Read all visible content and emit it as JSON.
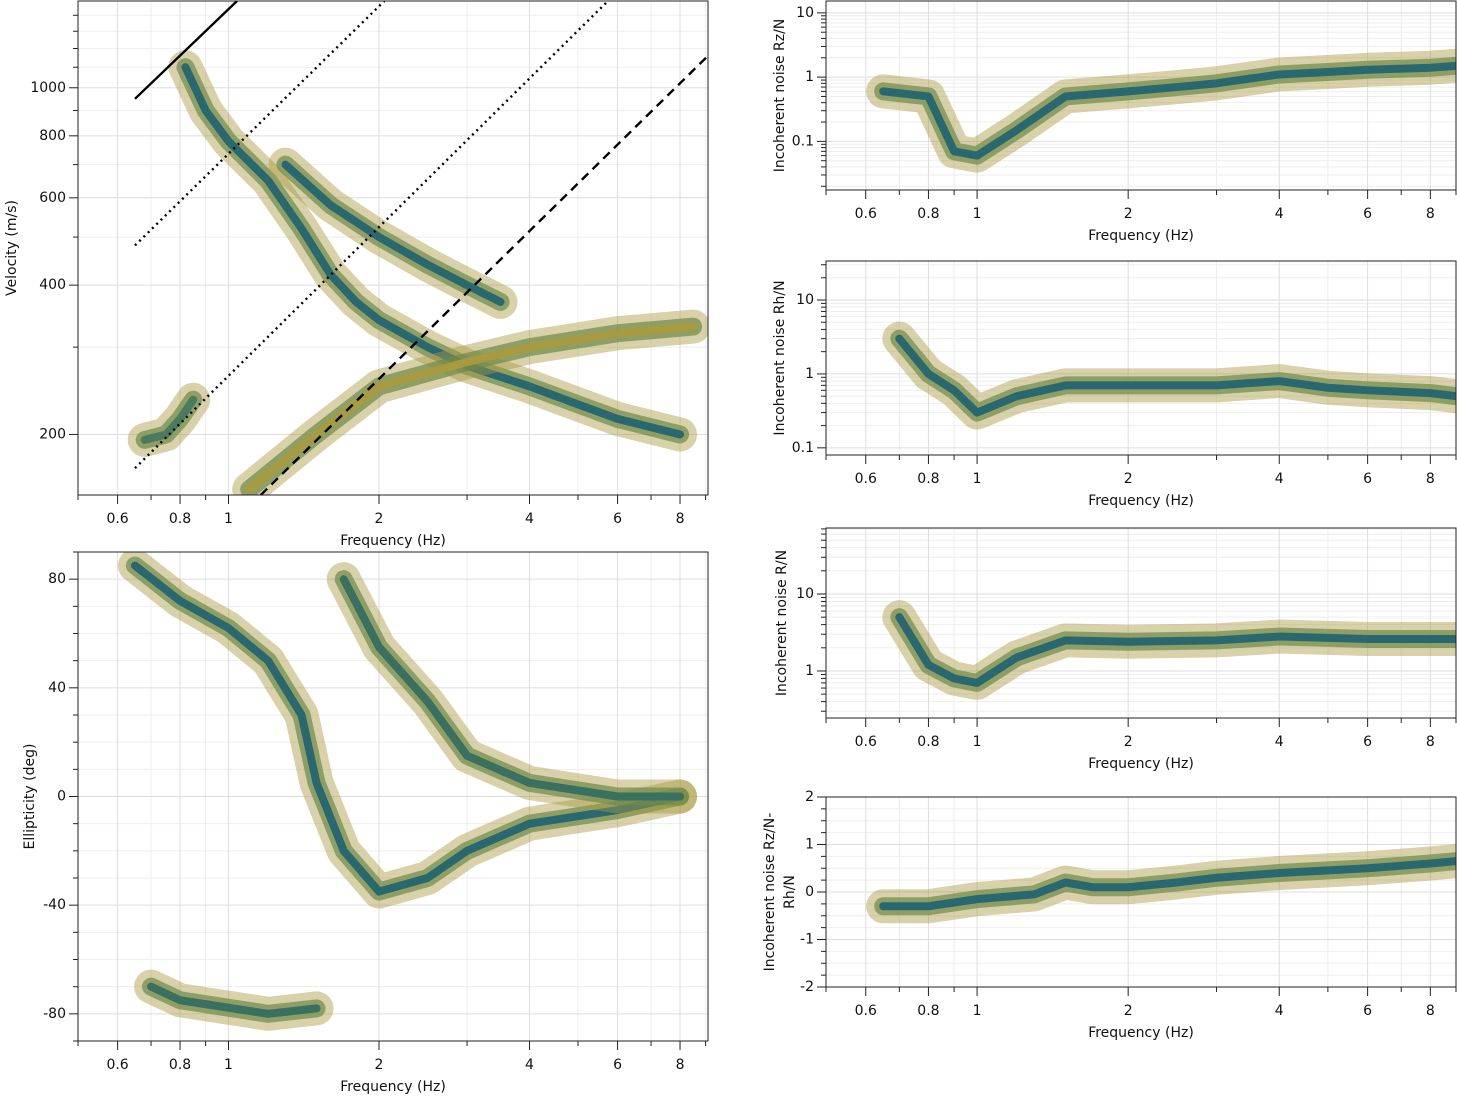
{
  "chart_data": [
    {
      "type": "density",
      "xlabel": "Frequency (Hz)",
      "ylabel": [
        "Velocity (m/s)"
      ],
      "xlog": true,
      "ylog": true,
      "xlim": [
        0.5,
        9.1
      ],
      "ylim": [
        151,
        1496
      ],
      "xticks": [
        0.6,
        0.8,
        1,
        2,
        4,
        6,
        8
      ],
      "minor_xticks": [
        0.5,
        0.7,
        0.9,
        3,
        5,
        7,
        9
      ],
      "yticks": [
        200,
        400,
        600,
        800,
        1000
      ],
      "minor_yticks": [
        300,
        500,
        700,
        900,
        1100,
        1200,
        1300,
        1400
      ],
      "series": [
        {
          "color": "#2a6870",
          "x": [
            0.82,
            0.9,
            1,
            1.2,
            1.4,
            1.6,
            1.8,
            2,
            2.5,
            3,
            4,
            5,
            6,
            8
          ],
          "y": [
            1100,
            900,
            780,
            650,
            520,
            420,
            370,
            340,
            300,
            275,
            250,
            230,
            215,
            200
          ]
        },
        {
          "color": "#2a6870",
          "x": [
            1.3,
            1.6,
            2,
            2.5,
            3,
            3.5
          ],
          "y": [
            700,
            580,
            500,
            440,
            400,
            370
          ]
        },
        {
          "color": "#4a7a60",
          "x": [
            0.68,
            0.75,
            0.8,
            0.85
          ],
          "y": [
            195,
            200,
            215,
            235
          ]
        },
        {
          "color": "#a89a40",
          "x": [
            1.1,
            1.5,
            2,
            3,
            4,
            6,
            8.5
          ],
          "y": [
            155,
            200,
            250,
            280,
            300,
            320,
            330
          ]
        }
      ],
      "lines": [
        {
          "style": "solid",
          "x": [
            0.65,
            1.04
          ],
          "y": [
            950,
            1496
          ]
        },
        {
          "style": "dotted",
          "x": [
            0.65,
            2.05
          ],
          "y": [
            481,
            1496
          ]
        },
        {
          "style": "dotted",
          "x": [
            0.65,
            5.74
          ],
          "y": [
            171,
            1496
          ]
        },
        {
          "style": "dashed",
          "x": [
            1.16,
            9.1
          ],
          "y": [
            151,
            1160
          ]
        }
      ]
    },
    {
      "type": "density",
      "xlabel": "Frequency (Hz)",
      "ylabel": [
        "Ellipticity (deg)"
      ],
      "xlog": true,
      "ylog": false,
      "xlim": [
        0.5,
        9.1
      ],
      "ylim": [
        -90,
        90
      ],
      "xticks": [
        0.6,
        0.8,
        1,
        2,
        4,
        6,
        8
      ],
      "minor_xticks": [
        0.5,
        0.7,
        0.9,
        3,
        5,
        7,
        9
      ],
      "yticks": [
        -80,
        -40,
        0,
        40,
        80
      ],
      "minor_yticks": [
        -90,
        -70,
        -60,
        -50,
        -30,
        -20,
        -10,
        10,
        20,
        30,
        50,
        60,
        70,
        90
      ],
      "series": [
        {
          "color": "#2a6870",
          "x": [
            0.65,
            0.8,
            1,
            1.2,
            1.4,
            1.5,
            1.7,
            2,
            2.5,
            3,
            4,
            6,
            8
          ],
          "y": [
            85,
            72,
            62,
            50,
            30,
            5,
            -20,
            -35,
            -30,
            -20,
            -10,
            -5,
            0
          ]
        },
        {
          "color": "#3a7060",
          "x": [
            1.7,
            2,
            2.5,
            3,
            4,
            6,
            8
          ],
          "y": [
            80,
            55,
            35,
            15,
            5,
            0,
            0
          ]
        },
        {
          "color": "#3a7060",
          "x": [
            0.7,
            0.8,
            1.2,
            1.5
          ],
          "y": [
            -70,
            -75,
            -80,
            -78
          ]
        }
      ]
    },
    {
      "type": "density",
      "xlabel": "Frequency (Hz)",
      "ylabel": [
        "Incoherent noise Rz/N"
      ],
      "xlog": true,
      "ylog": true,
      "xlim": [
        0.5,
        9
      ],
      "ylim": [
        0.0175,
        15.3
      ],
      "xticks": [
        0.6,
        0.8,
        1,
        2,
        4,
        6,
        8
      ],
      "minor_xticks": [
        0.5,
        0.7,
        0.9,
        3,
        5,
        7,
        9
      ],
      "yticks": [
        0.1,
        1,
        10
      ],
      "minor_yticks": [
        0.02,
        0.03,
        0.04,
        0.05,
        0.06,
        0.07,
        0.08,
        0.09,
        0.2,
        0.3,
        0.4,
        0.5,
        0.6,
        0.7,
        0.8,
        0.9,
        2,
        3,
        4,
        5,
        6,
        7,
        8,
        9
      ],
      "series": [
        {
          "color": "#2a6870",
          "x": [
            0.65,
            0.8,
            0.9,
            1,
            1.2,
            1.5,
            2,
            2.5,
            3,
            4,
            5,
            6,
            8,
            9
          ],
          "y": [
            0.6,
            0.5,
            0.07,
            0.06,
            0.15,
            0.5,
            0.6,
            0.7,
            0.8,
            1.1,
            1.2,
            1.3,
            1.4,
            1.5
          ]
        }
      ]
    },
    {
      "type": "density",
      "xlabel": "Frequency (Hz)",
      "ylabel": [
        "Incoherent noise Rh/N"
      ],
      "xlog": true,
      "ylog": true,
      "xlim": [
        0.5,
        9
      ],
      "ylim": [
        0.08,
        33.7
      ],
      "xticks": [
        0.6,
        0.8,
        1,
        2,
        4,
        6,
        8
      ],
      "minor_xticks": [
        0.5,
        0.7,
        0.9,
        3,
        5,
        7,
        9
      ],
      "yticks": [
        0.1,
        1,
        10
      ],
      "minor_yticks": [
        0.2,
        0.3,
        0.4,
        0.5,
        0.6,
        0.7,
        0.8,
        0.9,
        2,
        3,
        4,
        5,
        6,
        7,
        8,
        9,
        20,
        30
      ],
      "series": [
        {
          "color": "#2a6870",
          "x": [
            0.7,
            0.8,
            0.9,
            1,
            1.2,
            1.5,
            2,
            3,
            4,
            5,
            6,
            8,
            9
          ],
          "y": [
            3,
            1,
            0.6,
            0.3,
            0.5,
            0.7,
            0.7,
            0.7,
            0.8,
            0.65,
            0.6,
            0.55,
            0.5
          ]
        }
      ]
    },
    {
      "type": "density",
      "xlabel": "Frequency (Hz)",
      "ylabel": [
        "Incoherent noise R/N"
      ],
      "xlog": true,
      "ylog": true,
      "xlim": [
        0.5,
        9
      ],
      "ylim": [
        0.245,
        72
      ],
      "xticks": [
        0.6,
        0.8,
        1,
        2,
        4,
        6,
        8
      ],
      "minor_xticks": [
        0.5,
        0.7,
        0.9,
        3,
        5,
        7,
        9
      ],
      "yticks": [
        1,
        10
      ],
      "minor_yticks": [
        0.3,
        0.4,
        0.5,
        0.6,
        0.7,
        0.8,
        0.9,
        2,
        3,
        4,
        5,
        6,
        7,
        8,
        9,
        20,
        30,
        40,
        50,
        60,
        70
      ],
      "series": [
        {
          "color": "#2a6870",
          "x": [
            0.7,
            0.8,
            0.9,
            1,
            1.2,
            1.5,
            2,
            3,
            4,
            6,
            8,
            9
          ],
          "y": [
            5,
            1.2,
            0.8,
            0.7,
            1.5,
            2.5,
            2.4,
            2.5,
            2.8,
            2.6,
            2.6,
            2.6
          ]
        }
      ]
    },
    {
      "type": "density",
      "xlabel": "Frequency (Hz)",
      "ylabel": [
        "Incoherent noise Rz/N-",
        "Rh/N"
      ],
      "xlog": true,
      "ylog": false,
      "xlim": [
        0.5,
        9
      ],
      "ylim": [
        -2,
        2
      ],
      "xticks": [
        0.6,
        0.8,
        1,
        2,
        4,
        6,
        8
      ],
      "minor_xticks": [
        0.5,
        0.7,
        0.9,
        3,
        5,
        7,
        9
      ],
      "yticks": [
        -2,
        -1,
        0,
        1,
        2
      ],
      "minor_yticks": [
        -1.75,
        -1.5,
        -1.25,
        -0.75,
        -0.5,
        -0.25,
        0.25,
        0.5,
        0.75,
        1.25,
        1.5,
        1.75
      ],
      "series": [
        {
          "color": "#2a6870",
          "x": [
            0.65,
            0.8,
            1,
            1.3,
            1.5,
            1.7,
            2,
            2.5,
            3,
            4,
            6,
            8,
            9
          ],
          "y": [
            -0.3,
            -0.3,
            -0.15,
            -0.05,
            0.2,
            0.1,
            0.1,
            0.2,
            0.3,
            0.4,
            0.5,
            0.6,
            0.65
          ]
        }
      ]
    }
  ]
}
